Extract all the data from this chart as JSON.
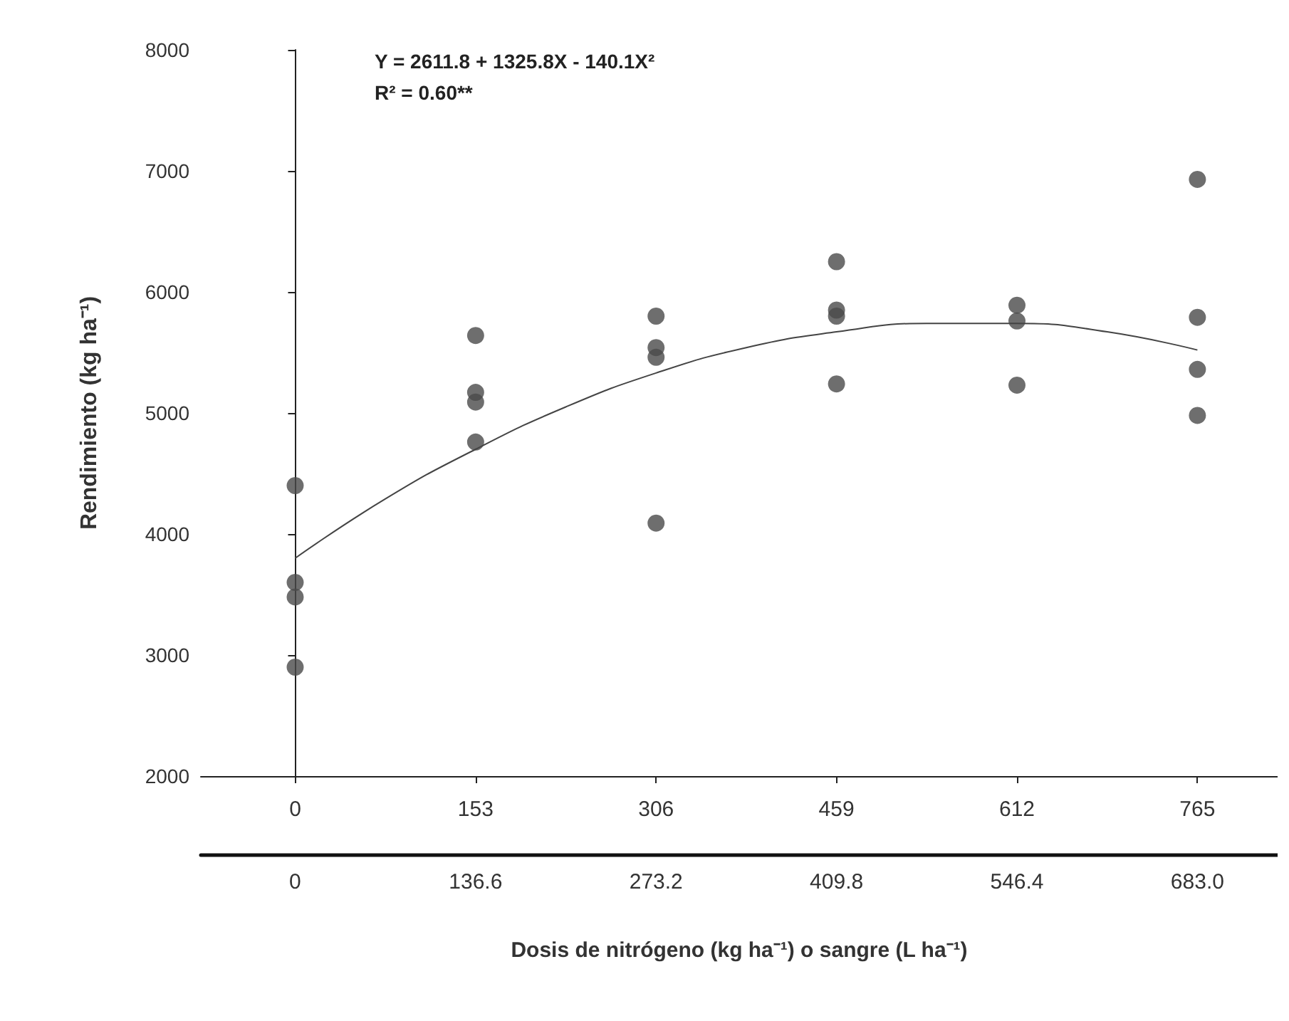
{
  "chart_data": {
    "type": "scatter",
    "xlabel": "Dosis de nitrógeno (kg ha⁻¹) o sangre (L ha⁻¹)",
    "ylabel": "Rendimiento (kg ha⁻¹)",
    "annotations": [
      "Y = 2611.8 + 1325.8X - 140.1X²",
      "R² = 0.60**"
    ],
    "xlim": [
      -80,
      833
    ],
    "xticks": [
      0,
      153,
      306,
      459,
      612,
      765
    ],
    "x2lim": [
      -71.4,
      743.7
    ],
    "x2ticks": [
      0,
      136.6,
      273.2,
      409.8,
      546.4,
      {
        "value": 683,
        "label": "683.0"
      }
    ],
    "ylim": [
      2000,
      8000
    ],
    "yticks": [
      2000,
      3000,
      4000,
      5000,
      6000,
      7000,
      8000
    ],
    "marker": "circle",
    "series": [
      {
        "color": "#4a4a4a",
        "x": [
          0,
          0,
          0,
          0,
          153,
          153,
          153,
          153,
          306,
          306,
          306,
          306,
          459,
          459,
          459,
          459,
          612,
          612,
          612,
          765,
          765,
          765,
          765
        ],
        "values": [
          4400,
          3600,
          3480,
          2900,
          5640,
          5170,
          5090,
          4760,
          5800,
          5540,
          5460,
          4090,
          6250,
          5850,
          5800,
          5240,
          5890,
          5760,
          5230,
          6930,
          5790,
          5360,
          4980
        ]
      },
      {
        "type": "line",
        "color": "#444444",
        "marker": "none",
        "x": [
          0,
          76.5,
          153,
          229.5,
          306,
          382.5,
          459,
          535.5,
          612,
          688.5,
          765
        ],
        "values": [
          3800,
          4290,
          4700,
          5050,
          5330,
          5540,
          5670,
          5740,
          5740,
          5670,
          5520
        ]
      }
    ]
  }
}
